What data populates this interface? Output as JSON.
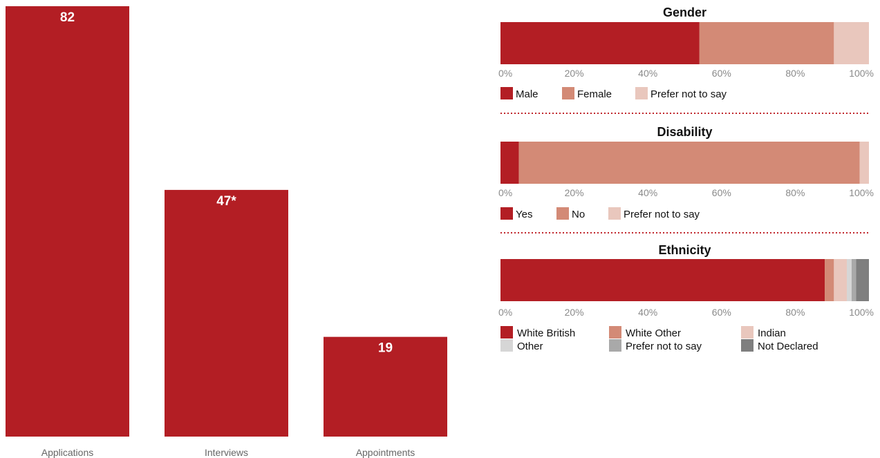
{
  "chart_data": [
    {
      "type": "bar",
      "categories": [
        "Applications",
        "Interviews",
        "Appointments"
      ],
      "values": [
        82,
        47,
        19
      ],
      "value_labels": [
        "82",
        "47*",
        "19"
      ],
      "color": "#b31e24",
      "ylim": [
        0,
        82
      ]
    },
    {
      "type": "bar",
      "stacked": true,
      "orientation": "horizontal",
      "title": "Gender",
      "x_ticks": [
        "0%",
        "20%",
        "40%",
        "60%",
        "80%",
        "100%"
      ],
      "xlim": [
        0,
        100
      ],
      "series": [
        {
          "name": "Male",
          "value": 54,
          "color": "#b31e24"
        },
        {
          "name": "Female",
          "value": 36.5,
          "color": "#d38a76"
        },
        {
          "name": "Prefer not to say",
          "value": 9.5,
          "color": "#e9c7bd"
        }
      ]
    },
    {
      "type": "bar",
      "stacked": true,
      "orientation": "horizontal",
      "title": "Disability",
      "x_ticks": [
        "0%",
        "20%",
        "40%",
        "60%",
        "80%",
        "100%"
      ],
      "xlim": [
        0,
        100
      ],
      "series": [
        {
          "name": "Yes",
          "value": 5,
          "color": "#b31e24"
        },
        {
          "name": "No",
          "value": 92.5,
          "color": "#d38a76"
        },
        {
          "name": "Prefer not to say",
          "value": 2.5,
          "color": "#e9c7bd"
        }
      ]
    },
    {
      "type": "bar",
      "stacked": true,
      "orientation": "horizontal",
      "title": "Ethnicity",
      "x_ticks": [
        "0%",
        "20%",
        "40%",
        "60%",
        "80%",
        "100%"
      ],
      "xlim": [
        0,
        100
      ],
      "series": [
        {
          "name": "White British",
          "value": 88,
          "color": "#b31e24"
        },
        {
          "name": "White Other",
          "value": 2.5,
          "color": "#d38a76"
        },
        {
          "name": "Indian",
          "value": 3.5,
          "color": "#e9c7bd"
        },
        {
          "name": "Other",
          "value": 1.3,
          "color": "#d6d6d6"
        },
        {
          "name": "Prefer not to say",
          "value": 1.2,
          "color": "#a9a9a9"
        },
        {
          "name": "Not Declared",
          "value": 3.5,
          "color": "#7f7f7f"
        }
      ]
    }
  ]
}
